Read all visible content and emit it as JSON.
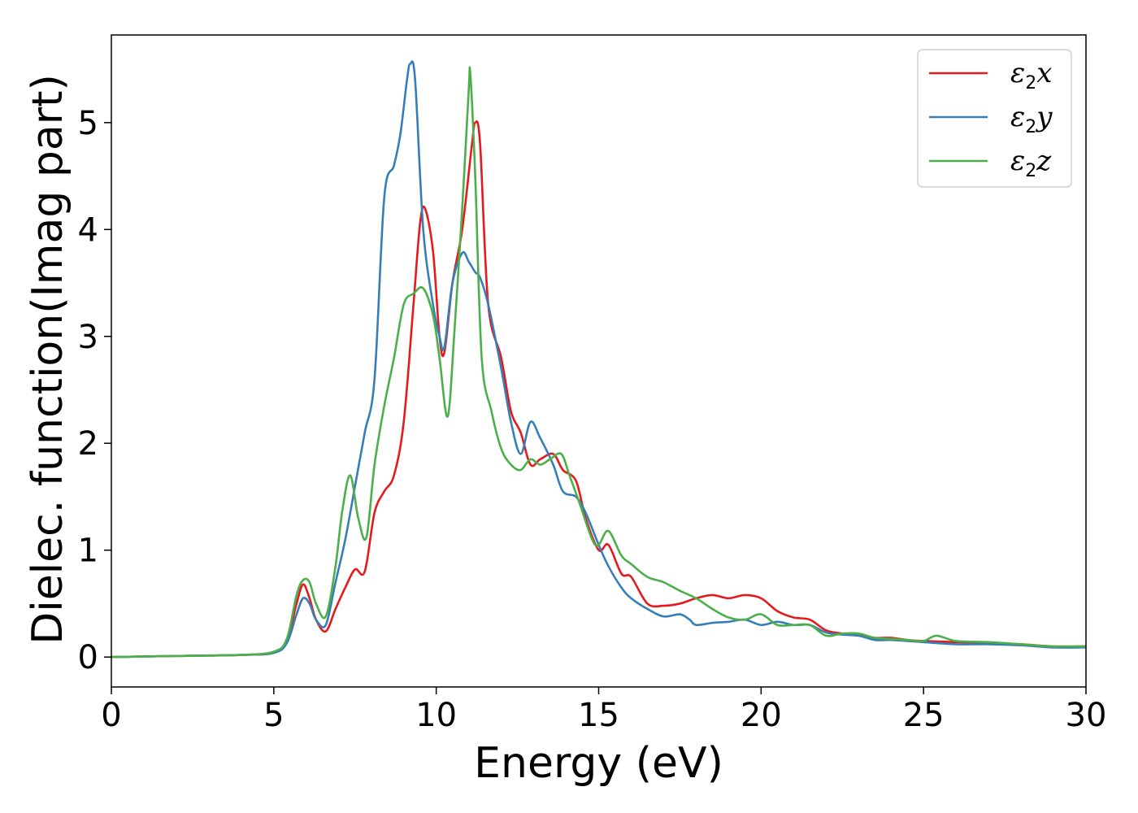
{
  "chart_data": {
    "type": "line",
    "xlabel": "Energy (eV)",
    "ylabel": "Dielec. function(Imag part)",
    "xlim": [
      0,
      30
    ],
    "ylim": [
      -0.28,
      5.82
    ],
    "xticks": [
      "0",
      "5",
      "10",
      "15",
      "20",
      "25",
      "30"
    ],
    "yticks": [
      "0",
      "1",
      "2",
      "3",
      "4",
      "5"
    ],
    "grid": false,
    "legend_position": "top-right",
    "series": [
      {
        "name": "ε2x",
        "legend_symbol": "ε",
        "legend_sub": "2",
        "legend_var": "x",
        "color": "#e41a1c",
        "x": [
          0,
          2,
          4,
          5,
          5.4,
          5.7,
          5.9,
          6.1,
          6.3,
          6.6,
          6.9,
          7.2,
          7.5,
          7.8,
          8.1,
          8.4,
          8.7,
          9.0,
          9.3,
          9.5,
          9.65,
          9.9,
          10.1,
          10.25,
          10.5,
          10.8,
          11.1,
          11.2,
          11.35,
          11.6,
          12.0,
          12.3,
          12.6,
          12.9,
          13.2,
          13.6,
          13.9,
          14.3,
          14.6,
          15.0,
          15.3,
          15.7,
          16.0,
          16.5,
          17.0,
          17.5,
          18.0,
          18.5,
          19.0,
          19.5,
          20.0,
          20.5,
          21.0,
          21.5,
          22.0,
          22.5,
          23.0,
          23.5,
          24.0,
          24.5,
          25.0,
          26.0,
          27.0,
          28.0,
          29.0,
          30.0
        ],
        "y": [
          0,
          0.01,
          0.02,
          0.04,
          0.15,
          0.5,
          0.68,
          0.55,
          0.35,
          0.24,
          0.45,
          0.65,
          0.82,
          0.8,
          1.35,
          1.55,
          1.7,
          2.2,
          3.3,
          4.05,
          4.2,
          3.8,
          3.0,
          2.85,
          3.5,
          4.0,
          4.8,
          5.0,
          4.8,
          3.3,
          2.8,
          2.3,
          2.1,
          1.8,
          1.85,
          1.9,
          1.75,
          1.65,
          1.3,
          1.0,
          1.05,
          0.78,
          0.75,
          0.5,
          0.48,
          0.5,
          0.55,
          0.58,
          0.55,
          0.58,
          0.55,
          0.43,
          0.37,
          0.35,
          0.25,
          0.22,
          0.2,
          0.18,
          0.18,
          0.16,
          0.15,
          0.14,
          0.13,
          0.12,
          0.1,
          0.1
        ]
      },
      {
        "name": "ε2y",
        "legend_symbol": "ε",
        "legend_sub": "2",
        "legend_var": "y",
        "color": "#377eb8",
        "x": [
          0,
          2,
          4,
          5,
          5.4,
          5.7,
          5.9,
          6.1,
          6.3,
          6.6,
          6.9,
          7.2,
          7.5,
          7.8,
          8.1,
          8.4,
          8.7,
          8.9,
          9.1,
          9.2,
          9.35,
          9.6,
          9.9,
          10.1,
          10.25,
          10.5,
          10.8,
          11.0,
          11.2,
          11.35,
          11.6,
          12.0,
          12.3,
          12.6,
          12.9,
          13.2,
          13.6,
          13.9,
          14.3,
          14.6,
          15.0,
          15.3,
          15.7,
          16.0,
          16.5,
          17.0,
          17.5,
          17.8,
          18.0,
          18.5,
          19.0,
          19.5,
          20.0,
          20.5,
          21.0,
          21.5,
          22.0,
          22.5,
          23.0,
          23.5,
          24.0,
          24.5,
          25.0,
          26.0,
          27.0,
          28.0,
          29.0,
          30.0
        ],
        "y": [
          0,
          0.01,
          0.02,
          0.04,
          0.13,
          0.4,
          0.55,
          0.5,
          0.35,
          0.3,
          0.7,
          1.1,
          1.6,
          2.1,
          2.6,
          4.3,
          4.6,
          4.9,
          5.4,
          5.55,
          5.4,
          4.0,
          3.3,
          3.0,
          2.9,
          3.5,
          3.78,
          3.7,
          3.6,
          3.55,
          3.3,
          2.7,
          2.2,
          1.9,
          2.2,
          2.05,
          1.8,
          1.55,
          1.5,
          1.35,
          1.05,
          0.85,
          0.65,
          0.55,
          0.45,
          0.38,
          0.4,
          0.35,
          0.3,
          0.32,
          0.33,
          0.35,
          0.3,
          0.33,
          0.3,
          0.3,
          0.23,
          0.21,
          0.2,
          0.16,
          0.16,
          0.15,
          0.14,
          0.12,
          0.12,
          0.11,
          0.09,
          0.09
        ]
      },
      {
        "name": "ε2z",
        "legend_symbol": "ε",
        "legend_sub": "2",
        "legend_var": "z",
        "color": "#4daf4a",
        "x": [
          0,
          2,
          4,
          5,
          5.4,
          5.7,
          5.9,
          6.1,
          6.3,
          6.6,
          6.9,
          7.1,
          7.35,
          7.6,
          7.85,
          8.1,
          8.4,
          8.7,
          9.0,
          9.3,
          9.6,
          9.9,
          10.1,
          10.35,
          10.55,
          10.8,
          11.0,
          11.05,
          11.2,
          11.4,
          11.7,
          12.0,
          12.3,
          12.6,
          12.9,
          13.2,
          13.5,
          13.85,
          14.1,
          14.4,
          14.8,
          15.0,
          15.3,
          15.7,
          16.0,
          16.5,
          17.0,
          17.5,
          18.0,
          18.5,
          19.0,
          19.5,
          20.0,
          20.5,
          21.0,
          21.5,
          22.0,
          22.5,
          23.0,
          23.5,
          24.0,
          24.5,
          25.0,
          25.4,
          26.0,
          27.0,
          28.0,
          29.0,
          30.0
        ],
        "y": [
          0,
          0.01,
          0.02,
          0.05,
          0.17,
          0.58,
          0.72,
          0.7,
          0.5,
          0.38,
          0.85,
          1.35,
          1.7,
          1.3,
          1.12,
          1.8,
          2.35,
          2.8,
          3.3,
          3.4,
          3.45,
          3.2,
          2.8,
          2.25,
          3.0,
          4.2,
          5.3,
          5.45,
          4.5,
          2.8,
          2.3,
          1.95,
          1.8,
          1.75,
          1.85,
          1.8,
          1.85,
          1.9,
          1.7,
          1.45,
          1.1,
          1.05,
          1.18,
          0.95,
          0.87,
          0.75,
          0.7,
          0.62,
          0.55,
          0.45,
          0.37,
          0.35,
          0.4,
          0.3,
          0.3,
          0.3,
          0.2,
          0.22,
          0.22,
          0.18,
          0.17,
          0.16,
          0.15,
          0.2,
          0.15,
          0.14,
          0.12,
          0.1,
          0.1
        ]
      }
    ]
  }
}
